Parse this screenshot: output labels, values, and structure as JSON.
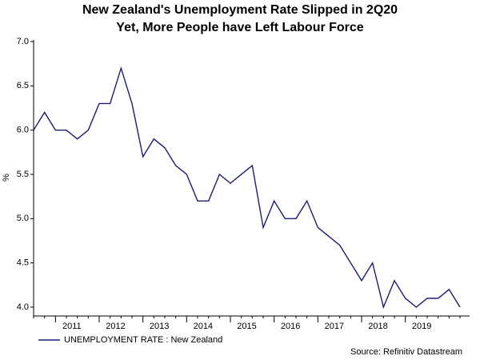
{
  "chart_data": {
    "type": "line",
    "title": [
      "New Zealand's Unemployment Rate Slipped in 2Q20",
      "Yet, More People have Left Labour Force"
    ],
    "y_label": "%",
    "categories": [
      null,
      null,
      "2011",
      null,
      null,
      null,
      "2012",
      null,
      null,
      null,
      "2013",
      null,
      null,
      null,
      "2014",
      null,
      null,
      null,
      "2015",
      null,
      null,
      null,
      "2016",
      null,
      null,
      null,
      "2017",
      null,
      null,
      null,
      "2018",
      null,
      null,
      null,
      "2019",
      null,
      null,
      null,
      null,
      null
    ],
    "series": [
      {
        "name": "UNEMPLOYMENT RATE : New Zealand",
        "color": "#1c1c78",
        "values": [
          6.0,
          6.2,
          6.0,
          6.0,
          5.9,
          6.0,
          6.3,
          6.3,
          6.7,
          6.3,
          5.7,
          5.9,
          5.8,
          5.6,
          5.5,
          5.2,
          5.2,
          5.5,
          5.4,
          5.5,
          5.6,
          4.9,
          5.2,
          5.0,
          5.0,
          5.2,
          4.9,
          4.8,
          4.7,
          4.5,
          4.3,
          4.5,
          4.0,
          4.3,
          4.1,
          4.0,
          4.1,
          4.1,
          4.2,
          4.0
        ]
      }
    ],
    "ylim": [
      3.9,
      7.0
    ],
    "yticks": [
      {
        "value": 4,
        "label": "4.0"
      },
      4.5,
      {
        "value": 5,
        "label": "5.0"
      },
      5.5,
      {
        "value": 6,
        "label": "6.0"
      },
      6.5,
      {
        "value": 7,
        "label": "7.0"
      }
    ],
    "grid": false,
    "source": "Source: Refinitiv Datastream"
  }
}
